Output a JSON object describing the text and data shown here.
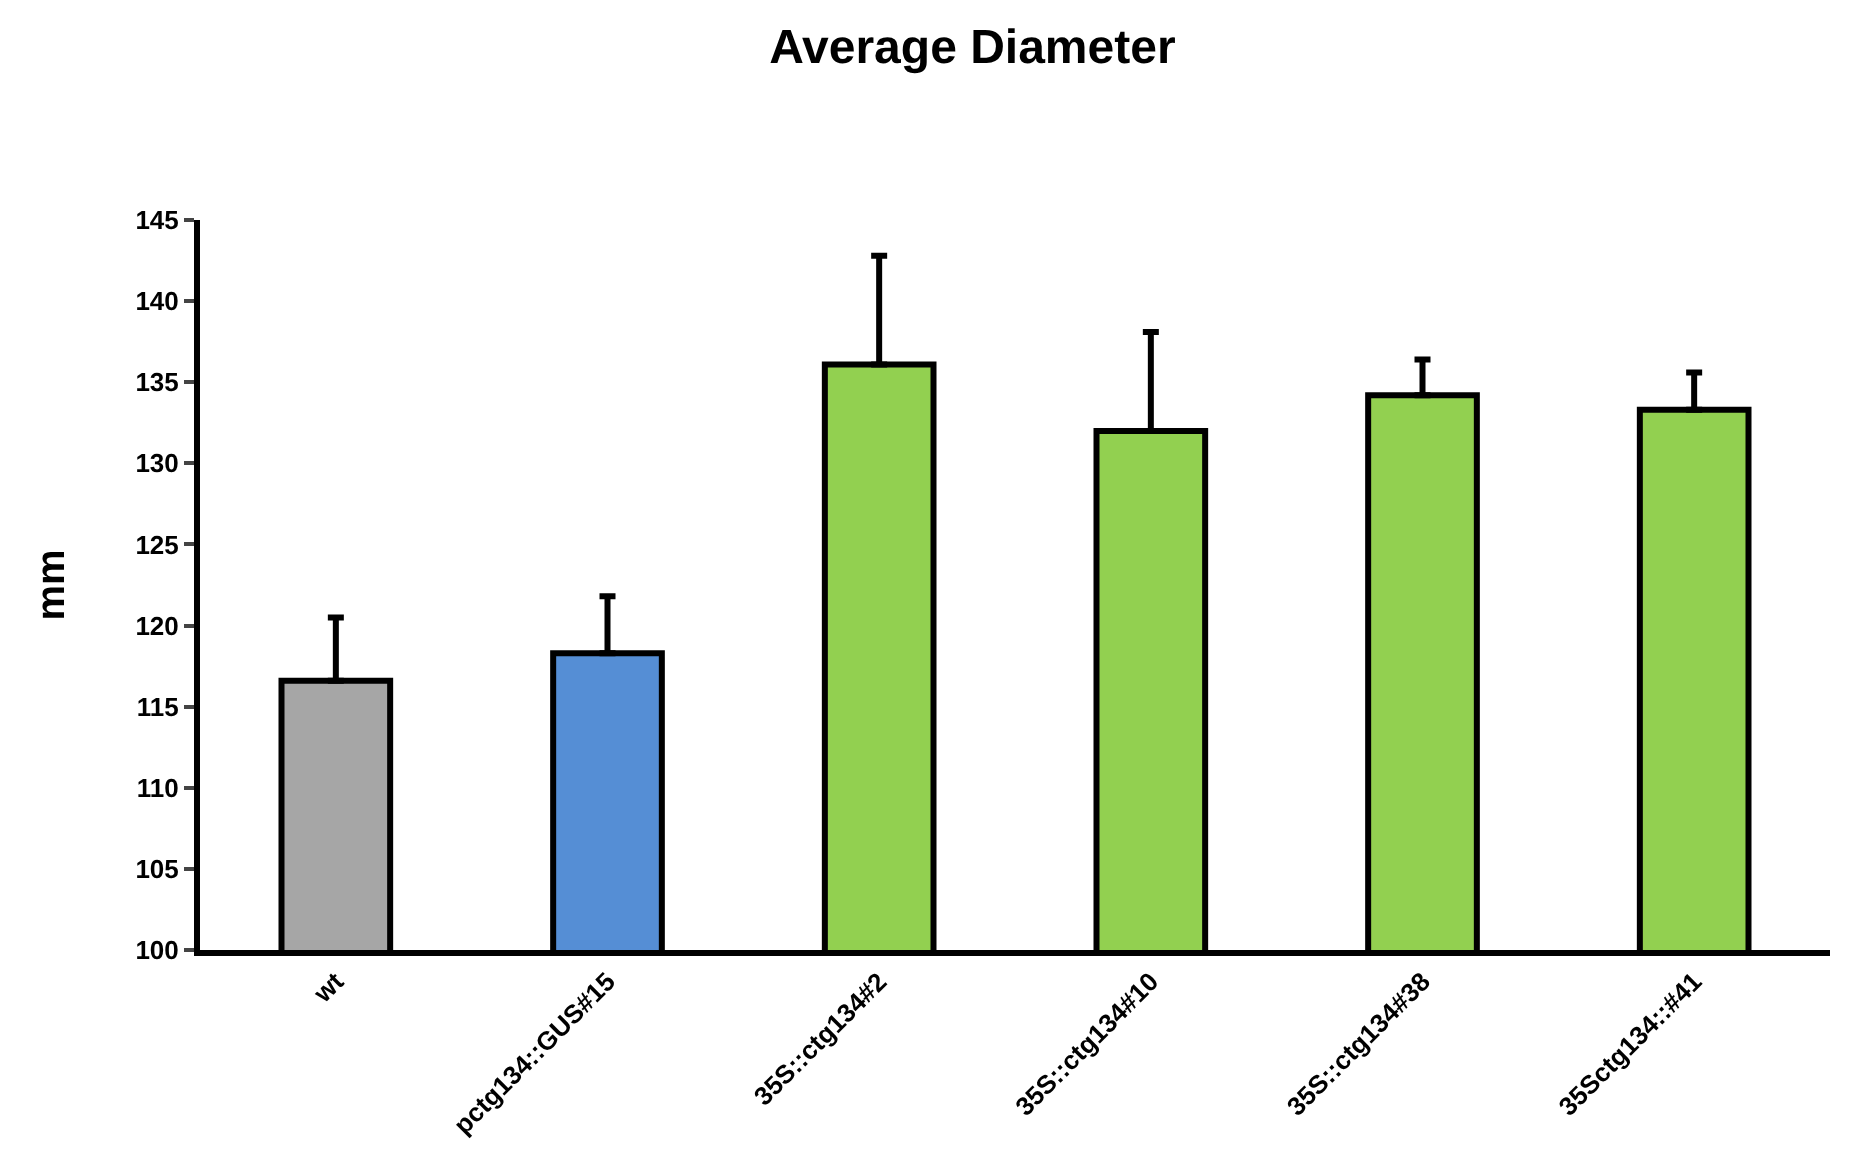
{
  "chart_data": {
    "type": "bar",
    "title": "Average Diameter",
    "ylabel": "mm",
    "categories": [
      "wt",
      "pctg134::GUS#15",
      "35S::ctg134#2",
      "35S::ctg134#10",
      "35S::ctg134#38",
      "35Sctg134::#41"
    ],
    "values": [
      116.6,
      118.3,
      136.1,
      132.0,
      134.2,
      133.3
    ],
    "colors": [
      "#a6a6a6",
      "#558ed5",
      "#92d050",
      "#92d050",
      "#92d050",
      "#92d050"
    ],
    "errors": [
      [
        116.6,
        120.5
      ],
      [
        118.3,
        121.8
      ],
      [
        136.1,
        142.8
      ],
      [
        132.0,
        138.1
      ],
      [
        134.2,
        136.4
      ],
      [
        133.3,
        135.6
      ]
    ],
    "ylim": [
      100,
      145
    ],
    "yticks": [
      100,
      105,
      110,
      115,
      120,
      125,
      130,
      135,
      140,
      145
    ],
    "grid": false
  }
}
